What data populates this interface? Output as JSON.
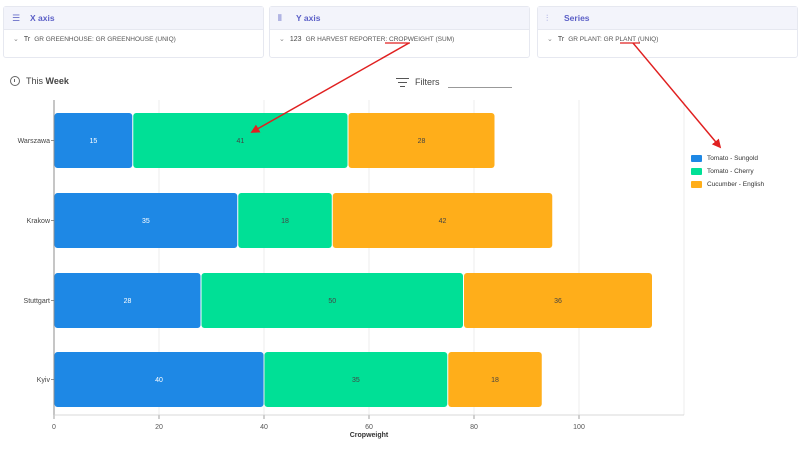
{
  "panels": [
    {
      "title": "X axis",
      "icon": "list-icon",
      "field": "GR GREENHOUSE: GR GREENHOUSE (UNIQ)",
      "type_glyph": "Tr"
    },
    {
      "title": "Y axis",
      "icon": "columns-icon",
      "field": "GR HARVEST REPORTER: CROPWEIGHT (SUM)",
      "type_glyph": "123"
    },
    {
      "title": "Series",
      "icon": "bars-icon",
      "field": "GR PLANT: GR PLANT (UNIQ)",
      "type_glyph": "Tr"
    }
  ],
  "period": {
    "prefix": "This",
    "bold": "Week"
  },
  "filters_label": "Filters",
  "colors": {
    "sungold": "#1e88e5",
    "cherry": "#00e096",
    "english": "#ffae1a",
    "annotation": "#e02020"
  },
  "chart_data": {
    "type": "bar",
    "orientation": "horizontal",
    "stacked": true,
    "categories": [
      "Warszawa",
      "Krakow",
      "Stuttgart",
      "Kyiv"
    ],
    "series": [
      {
        "name": "Tomato - Sungold",
        "values": [
          15,
          35,
          28,
          40
        ]
      },
      {
        "name": "Tomato - Cherry",
        "values": [
          41,
          18,
          50,
          35
        ]
      },
      {
        "name": "Cucumber - English",
        "values": [
          28,
          42,
          36,
          18
        ]
      }
    ],
    "xlabel": "Cropweight",
    "ylabel": "",
    "xlim": [
      0,
      120
    ],
    "xticks": [
      0,
      20,
      40,
      60,
      80,
      100
    ],
    "grid": true,
    "legend": "right"
  }
}
